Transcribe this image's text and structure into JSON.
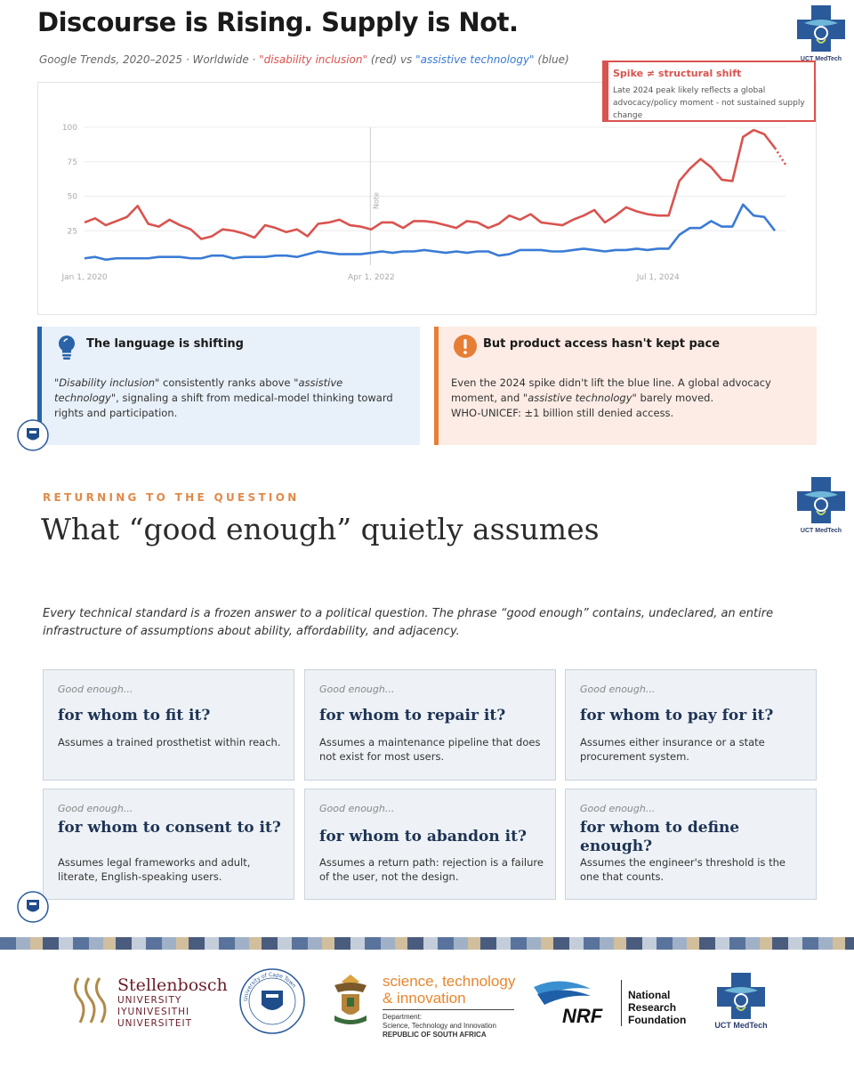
{
  "slide1": {
    "headline": "Discourse is Rising. Supply is Not.",
    "subtitle_prefix": "Google Trends, 2020–2025 · Worldwide · ",
    "subtitle_term1": "\"disability inclusion\"",
    "subtitle_mid": " (red) vs ",
    "subtitle_term2": "\"assistive technology\"",
    "subtitle_suffix": " (blue)",
    "callout": {
      "title": "Spike ≠ structural shift",
      "body": "Late 2024 peak likely reflects a global advocacy/policy moment - not sustained supply change"
    },
    "card_left": {
      "title": "The language is shifting",
      "body_a": "\"",
      "body_term1": "Disability inclusion",
      "body_b": "\" consistently ranks above \"",
      "body_term2": "assistive technology",
      "body_c": "\", signaling a shift from medical-model thinking toward rights and participation."
    },
    "card_right": {
      "title": "But product access hasn't kept pace",
      "body_a": "Even the 2024 spike didn't lift the blue line. A global advocacy moment, and \"",
      "body_term": "assistive technology",
      "body_b": "\" barely moved.",
      "body_line2": "WHO-UNICEF: ±1 billion still denied access."
    }
  },
  "chart_data": {
    "type": "line",
    "title": "",
    "xlabel": "",
    "ylabel": "",
    "ylim": [
      0,
      100
    ],
    "yticks": [
      "25",
      "50",
      "75",
      "100"
    ],
    "xticks": [
      "Jan 1, 2020",
      "Apr 1, 2022",
      "Jul 1, 2024"
    ],
    "annotation_label": "Note",
    "grid": true,
    "series": [
      {
        "name": "disability inclusion",
        "color": "#d9534f",
        "values": [
          31,
          34,
          29,
          32,
          35,
          43,
          30,
          28,
          33,
          29,
          26,
          19,
          21,
          26,
          25,
          23,
          20,
          29,
          27,
          24,
          26,
          21,
          30,
          31,
          33,
          29,
          28,
          26,
          31,
          31,
          27,
          32,
          32,
          31,
          29,
          27,
          32,
          31,
          27,
          30,
          36,
          33,
          37,
          31,
          30,
          29,
          33,
          36,
          40,
          31,
          36,
          42,
          39,
          37,
          36,
          36,
          61,
          70,
          77,
          71,
          62,
          61,
          93,
          98,
          95,
          85,
          73
        ],
        "dotted_from_index": 65
      },
      {
        "name": "assistive technology",
        "color": "#3a7bd5",
        "values": [
          5,
          6,
          4,
          5,
          5,
          5,
          5,
          6,
          6,
          6,
          5,
          5,
          7,
          7,
          5,
          6,
          6,
          6,
          7,
          7,
          6,
          8,
          10,
          9,
          8,
          8,
          8,
          9,
          10,
          9,
          10,
          10,
          11,
          10,
          9,
          10,
          9,
          10,
          10,
          7,
          8,
          11,
          11,
          11,
          10,
          10,
          11,
          12,
          11,
          10,
          11,
          11,
          12,
          11,
          12,
          12,
          22,
          27,
          27,
          32,
          28,
          28,
          44,
          36,
          35,
          25
        ]
      }
    ]
  },
  "slide2": {
    "kicker": "RETURNING TO THE QUESTION",
    "title": "What “good enough” quietly assumes",
    "intro": "Every technical standard is a frozen answer to a political question. The phrase “good enough” contains, undeclared, an entire infrastructure of assumptions about ability, affordability, and adjacency.",
    "cards": [
      {
        "eyebrow": "Good enough...",
        "title": "for whom to fit it?",
        "body": "Assumes a trained prosthetist within reach."
      },
      {
        "eyebrow": "Good enough...",
        "title": "for whom to repair it?",
        "body": "Assumes a maintenance pipeline that does not exist for most users."
      },
      {
        "eyebrow": "Good enough...",
        "title": "for whom to pay for it?",
        "body": "Assumes either insurance or a state procurement system."
      },
      {
        "eyebrow": "Good enough...",
        "title": "for whom to consent to it?",
        "body": "Assumes legal frameworks and adult, literate, English-speaking users."
      },
      {
        "eyebrow": "Good enough...",
        "title": "for whom to abandon it?",
        "body": "Assumes a return path: rejection is a failure of the user, not the design."
      },
      {
        "eyebrow": "Good enough...",
        "title": "for whom to define enough?",
        "body": "Assumes the engineer's threshold is the one that counts."
      }
    ]
  },
  "logos": {
    "medtech": "UCT MedTech",
    "stellenbosch": {
      "name": "Stellenbosch",
      "line1": "UNIVERSITY",
      "line2": "IYUNIVESITHI",
      "line3": "UNIVERSITEIT"
    },
    "uct_seal_text": "University of Cape Town",
    "sti": {
      "line1": "science, technology",
      "line2": "& innovation",
      "dept1": "Department:",
      "dept2": "Science, Technology and Innovation",
      "dept3": "REPUBLIC OF SOUTH AFRICA"
    },
    "nrf": {
      "mark": "NRF",
      "line1": "National",
      "line2": "Research",
      "line3": "Foundation"
    }
  },
  "colors": {
    "red_series": "#d9534f",
    "blue_series": "#3a7bd5",
    "accent_blue": "#2a63a8",
    "accent_orange": "#e67e35",
    "card_navy": "#1e3355"
  }
}
